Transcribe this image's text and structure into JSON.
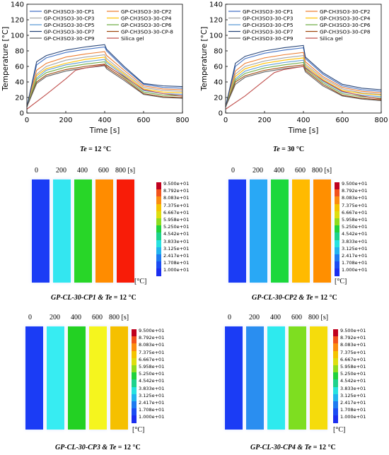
{
  "chart_data": [
    {
      "type": "line",
      "caption_var": "Te",
      "caption_rest": " = 12 °C",
      "xlabel": "Time [s]",
      "ylabel": "Temperature [°C]",
      "xlim": [
        0,
        800
      ],
      "ylim": [
        0,
        140
      ],
      "xticks": [
        0,
        200,
        400,
        600,
        800
      ],
      "yticks": [
        0,
        20,
        40,
        60,
        80,
        100,
        120,
        140
      ],
      "legend_position": "top",
      "series": [
        {
          "name": "GP-CH3SO3-30-CP1",
          "color": "#4472c4",
          "x": [
            0,
            50,
            100,
            200,
            300,
            400,
            410,
            500,
            600,
            700,
            800
          ],
          "y": [
            8,
            62,
            71,
            78,
            82,
            85,
            80,
            58,
            37,
            33,
            32
          ]
        },
        {
          "name": "GP-CH3SO3-30-CP2",
          "color": "#ed7d31",
          "x": [
            0,
            50,
            100,
            200,
            300,
            400,
            410,
            500,
            600,
            700,
            800
          ],
          "y": [
            8,
            55,
            64,
            72,
            76,
            79,
            74,
            55,
            35,
            31,
            30
          ]
        },
        {
          "name": "GP-CH3SO3-30-CP3",
          "color": "#a5a5a5",
          "x": [
            0,
            50,
            100,
            200,
            300,
            400,
            410,
            500,
            600,
            700,
            800
          ],
          "y": [
            8,
            50,
            60,
            68,
            72,
            75,
            70,
            52,
            33,
            29,
            28
          ]
        },
        {
          "name": "GP-CH3SO3-30-CP4",
          "color": "#ffc000",
          "x": [
            0,
            50,
            100,
            200,
            300,
            400,
            410,
            500,
            600,
            700,
            800
          ],
          "y": [
            8,
            48,
            57,
            64,
            69,
            72,
            67,
            50,
            31,
            27,
            26
          ]
        },
        {
          "name": "GP-CH3SO3-30-CP5",
          "color": "#5b9bd5",
          "x": [
            0,
            50,
            100,
            200,
            300,
            400,
            410,
            500,
            600,
            700,
            800
          ],
          "y": [
            8,
            45,
            55,
            62,
            66,
            69,
            65,
            48,
            29,
            25,
            24
          ]
        },
        {
          "name": "GP-CH3SO3-30-CP6",
          "color": "#70ad47",
          "x": [
            0,
            50,
            100,
            200,
            300,
            400,
            410,
            500,
            600,
            700,
            800
          ],
          "y": [
            8,
            43,
            52,
            59,
            63,
            66,
            62,
            46,
            27,
            23,
            22
          ]
        },
        {
          "name": "GP-CH3SO3-30-CP7",
          "color": "#264478",
          "x": [
            0,
            50,
            100,
            200,
            300,
            400,
            410,
            500,
            600,
            700,
            800
          ],
          "y": [
            8,
            66,
            74,
            81,
            85,
            88,
            82,
            60,
            38,
            35,
            34
          ]
        },
        {
          "name": "GP-CH3SO3-30-CP-8",
          "color": "#9e480e",
          "x": [
            0,
            50,
            100,
            200,
            300,
            400,
            410,
            500,
            600,
            700,
            800
          ],
          "y": [
            8,
            40,
            49,
            56,
            60,
            63,
            59,
            44,
            25,
            21,
            20
          ]
        },
        {
          "name": "GP-CH3SO3-30-CP9",
          "color": "#636363",
          "x": [
            0,
            50,
            100,
            200,
            300,
            400,
            410,
            500,
            600,
            700,
            800
          ],
          "y": [
            8,
            38,
            47,
            54,
            58,
            61,
            57,
            42,
            24,
            20,
            19
          ]
        },
        {
          "name": "Silica gel",
          "color": "#c0504d",
          "x": [
            0,
            100,
            200,
            250,
            300,
            400,
            410,
            500,
            600,
            700,
            800
          ],
          "y": [
            5,
            24,
            44,
            55,
            58,
            62,
            61,
            47,
            30,
            25,
            22
          ]
        }
      ]
    },
    {
      "type": "line",
      "caption_var": "Te",
      "caption_rest": " = 30 °C",
      "xlabel": "Time [s]",
      "ylabel": "Temperature [°C]",
      "xlim": [
        0,
        800
      ],
      "ylim": [
        0,
        140
      ],
      "xticks": [
        0,
        200,
        400,
        600,
        800
      ],
      "yticks": [
        0,
        20,
        40,
        60,
        80,
        100,
        120,
        140
      ],
      "legend_position": "top",
      "series": [
        {
          "name": "GP-CH3SO3-30-CP1",
          "color": "#4472c4",
          "x": [
            0,
            50,
            100,
            200,
            300,
            400,
            410,
            500,
            600,
            700,
            800
          ],
          "y": [
            8,
            60,
            70,
            77,
            81,
            84,
            70,
            50,
            35,
            30,
            28
          ]
        },
        {
          "name": "GP-CH3SO3-30-CP2",
          "color": "#ed7d31",
          "x": [
            0,
            50,
            100,
            200,
            300,
            400,
            410,
            500,
            600,
            700,
            800
          ],
          "y": [
            8,
            54,
            64,
            71,
            75,
            78,
            66,
            47,
            33,
            28,
            26
          ]
        },
        {
          "name": "GP-CH3SO3-30-CP3",
          "color": "#a5a5a5",
          "x": [
            0,
            50,
            100,
            200,
            300,
            400,
            410,
            500,
            600,
            700,
            800
          ],
          "y": [
            8,
            50,
            60,
            67,
            71,
            74,
            63,
            45,
            31,
            26,
            24
          ]
        },
        {
          "name": "GP-CH3SO3-30-CP4",
          "color": "#ffc000",
          "x": [
            0,
            50,
            100,
            200,
            300,
            400,
            410,
            500,
            600,
            700,
            800
          ],
          "y": [
            8,
            47,
            57,
            64,
            68,
            71,
            61,
            43,
            29,
            25,
            23
          ]
        },
        {
          "name": "GP-CH3SO3-30-CP5",
          "color": "#5b9bd5",
          "x": [
            0,
            50,
            100,
            200,
            300,
            400,
            410,
            500,
            600,
            700,
            800
          ],
          "y": [
            8,
            44,
            54,
            61,
            65,
            68,
            59,
            41,
            27,
            23,
            21
          ]
        },
        {
          "name": "GP-CH3SO3-30-CP6",
          "color": "#70ad47",
          "x": [
            0,
            50,
            100,
            200,
            300,
            400,
            410,
            500,
            600,
            700,
            800
          ],
          "y": [
            8,
            42,
            51,
            58,
            62,
            65,
            57,
            39,
            25,
            21,
            19
          ]
        },
        {
          "name": "GP-CH3SO3-30-CP7",
          "color": "#264478",
          "x": [
            0,
            50,
            100,
            200,
            300,
            400,
            410,
            500,
            600,
            700,
            800
          ],
          "y": [
            8,
            64,
            73,
            80,
            84,
            87,
            72,
            52,
            37,
            32,
            30
          ]
        },
        {
          "name": "GP-CH3SO3-30-CP8",
          "color": "#9e480e",
          "x": [
            0,
            50,
            100,
            200,
            300,
            400,
            410,
            500,
            600,
            700,
            800
          ],
          "y": [
            8,
            40,
            48,
            55,
            59,
            62,
            55,
            37,
            23,
            19,
            17
          ]
        },
        {
          "name": "GP-CH3SO3-30-CP9",
          "color": "#636363",
          "x": [
            0,
            50,
            100,
            200,
            300,
            400,
            410,
            500,
            600,
            700,
            800
          ],
          "y": [
            8,
            37,
            46,
            53,
            57,
            60,
            53,
            35,
            22,
            18,
            16
          ]
        },
        {
          "name": "Silica gel",
          "color": "#c0504d",
          "x": [
            0,
            100,
            200,
            250,
            300,
            400,
            410,
            500,
            600,
            700,
            800
          ],
          "y": [
            5,
            22,
            42,
            52,
            56,
            60,
            58,
            42,
            28,
            22,
            18
          ]
        }
      ]
    },
    {
      "type": "heatmap",
      "caption_prefix": "GP-CL-30-CP1 & ",
      "caption_var": "Te",
      "caption_rest": " = 12 °C",
      "times": [
        "0",
        "200",
        "400",
        "600"
      ],
      "time_last": "800 [s]",
      "bar_colors": [
        "#1b3cf5",
        "#33e6f0",
        "#28d628",
        "#ff8c00",
        "#f81c08"
      ],
      "unit": "[°C]"
    },
    {
      "type": "heatmap",
      "caption_prefix": "GP-CL-30-CP2 & ",
      "caption_var": "Te",
      "caption_rest": " = 12 °C",
      "times": [
        "0",
        "200",
        "400",
        "600"
      ],
      "time_last": "800 [s]",
      "bar_colors": [
        "#1b3cf5",
        "#29a8f5",
        "#1cd83c",
        "#ffba00",
        "#ff8f00"
      ],
      "unit": "[°C]"
    },
    {
      "type": "heatmap",
      "caption_prefix": "GP-CL-30-CP3 & ",
      "caption_var": "Te",
      "caption_rest": " = 12 °C",
      "times": [
        "0",
        "200",
        "400",
        "600"
      ],
      "time_last": "800 [s]",
      "bar_colors": [
        "#1b3cf5",
        "#37ecf2",
        "#23d123",
        "#f5f51e",
        "#f5c000"
      ],
      "unit": "[°C]"
    },
    {
      "type": "heatmap",
      "caption_prefix": "GP-CL-30-CP4 & ",
      "caption_var": "Te",
      "caption_rest": " = 12 °C",
      "times": [
        "0",
        "200",
        "400",
        "600"
      ],
      "time_last": "800 [s]",
      "bar_colors": [
        "#1b3cf5",
        "#2a8ef0",
        "#2eeaee",
        "#7ede20",
        "#f5dc0c"
      ],
      "unit": "[°C]"
    }
  ],
  "color_scale": {
    "labels": [
      "9.500e+01",
      "8.792e+01",
      "8.083e+01",
      "7.375e+01",
      "6.667e+01",
      "5.958e+01",
      "5.250e+01",
      "4.542e+01",
      "3.833e+01",
      "3.125e+01",
      "2.417e+01",
      "1.708e+01",
      "1.000e+01"
    ],
    "colors": [
      "#c0001e",
      "#f2531c",
      "#fb8c0f",
      "#f4c400",
      "#dede10",
      "#8fdc1f",
      "#20d23c",
      "#1ed28c",
      "#27e2e0",
      "#22b4ee",
      "#1e7af0",
      "#1b4cf3",
      "#1b2ef0"
    ]
  }
}
